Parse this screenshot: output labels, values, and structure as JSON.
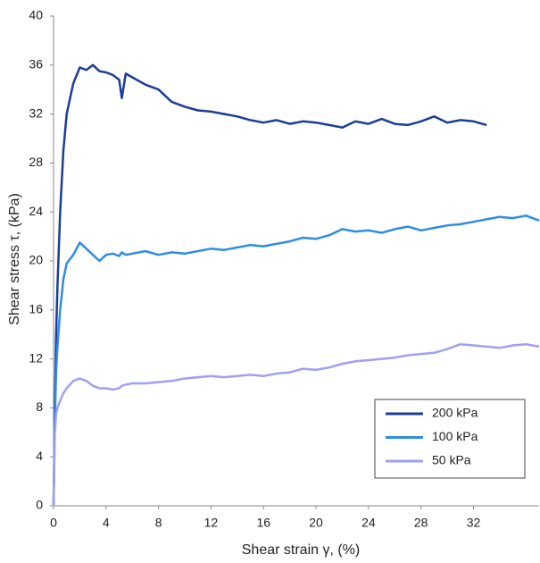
{
  "chart_data": {
    "type": "line",
    "x_label": "Shear strain γ, (%)",
    "y_label": "Shear stress τ, (kPa)",
    "x": [
      0,
      0.1,
      0.2,
      0.3,
      0.5,
      0.75,
      1,
      1.5,
      2,
      2.5,
      3,
      3.5,
      4,
      4.5,
      5,
      5.2,
      5.5,
      6,
      7,
      8,
      9,
      10,
      11,
      12,
      13,
      14,
      15,
      16,
      17,
      18,
      19,
      20,
      21,
      22,
      23,
      24,
      25,
      26,
      27,
      28,
      29,
      30,
      31,
      32,
      33,
      34,
      35,
      36,
      37
    ],
    "series": [
      {
        "name": "200 kPa",
        "color": "#1b3d99",
        "values": [
          0,
          8,
          14,
          18,
          24,
          29,
          32,
          34.5,
          35.8,
          35.6,
          36,
          35.5,
          35.4,
          35.2,
          34.8,
          33.3,
          35.3,
          35,
          34.4,
          34,
          33,
          32.6,
          32.3,
          32.2,
          32,
          31.8,
          31.5,
          31.3,
          31.5,
          31.2,
          31.4,
          31.3,
          31.1,
          30.9,
          31.4,
          31.2,
          31.6,
          31.2,
          31.1,
          31.4,
          31.8,
          31.3,
          31.5,
          31.4,
          31.1,
          null,
          null,
          null,
          null
        ]
      },
      {
        "name": "100 kPa",
        "color": "#2e8ce6",
        "values": [
          0,
          7,
          11,
          13,
          16,
          18.5,
          19.8,
          20.5,
          21.5,
          21,
          20.5,
          20,
          20.5,
          20.6,
          20.4,
          20.7,
          20.5,
          20.6,
          20.8,
          20.5,
          20.7,
          20.6,
          20.8,
          21,
          20.9,
          21.1,
          21.3,
          21.2,
          21.4,
          21.6,
          21.9,
          21.8,
          22.1,
          22.6,
          22.4,
          22.5,
          22.3,
          22.6,
          22.8,
          22.5,
          22.7,
          22.9,
          23,
          23.2,
          23.4,
          23.6,
          23.5,
          23.7,
          23.3
        ]
      },
      {
        "name": "50 kPa",
        "color": "#9f9ff5",
        "values": [
          0,
          6,
          7.5,
          8,
          8.6,
          9.2,
          9.6,
          10.2,
          10.4,
          10.2,
          9.8,
          9.6,
          9.6,
          9.5,
          9.6,
          9.8,
          9.9,
          10,
          10,
          10.1,
          10.2,
          10.4,
          10.5,
          10.6,
          10.5,
          10.6,
          10.7,
          10.6,
          10.8,
          10.9,
          11.2,
          11.1,
          11.3,
          11.6,
          11.8,
          11.9,
          12,
          12.1,
          12.3,
          12.4,
          12.5,
          12.8,
          13.2,
          13.1,
          13,
          12.9,
          13.1,
          13.2,
          13
        ]
      }
    ],
    "xlim": [
      0,
      37
    ],
    "xticks": [
      0,
      4,
      8,
      12,
      16,
      20,
      24,
      28,
      32
    ],
    "ylim": [
      0,
      40
    ],
    "yticks": [
      0,
      4,
      8,
      12,
      16,
      20,
      24,
      28,
      32,
      36,
      40
    ]
  }
}
